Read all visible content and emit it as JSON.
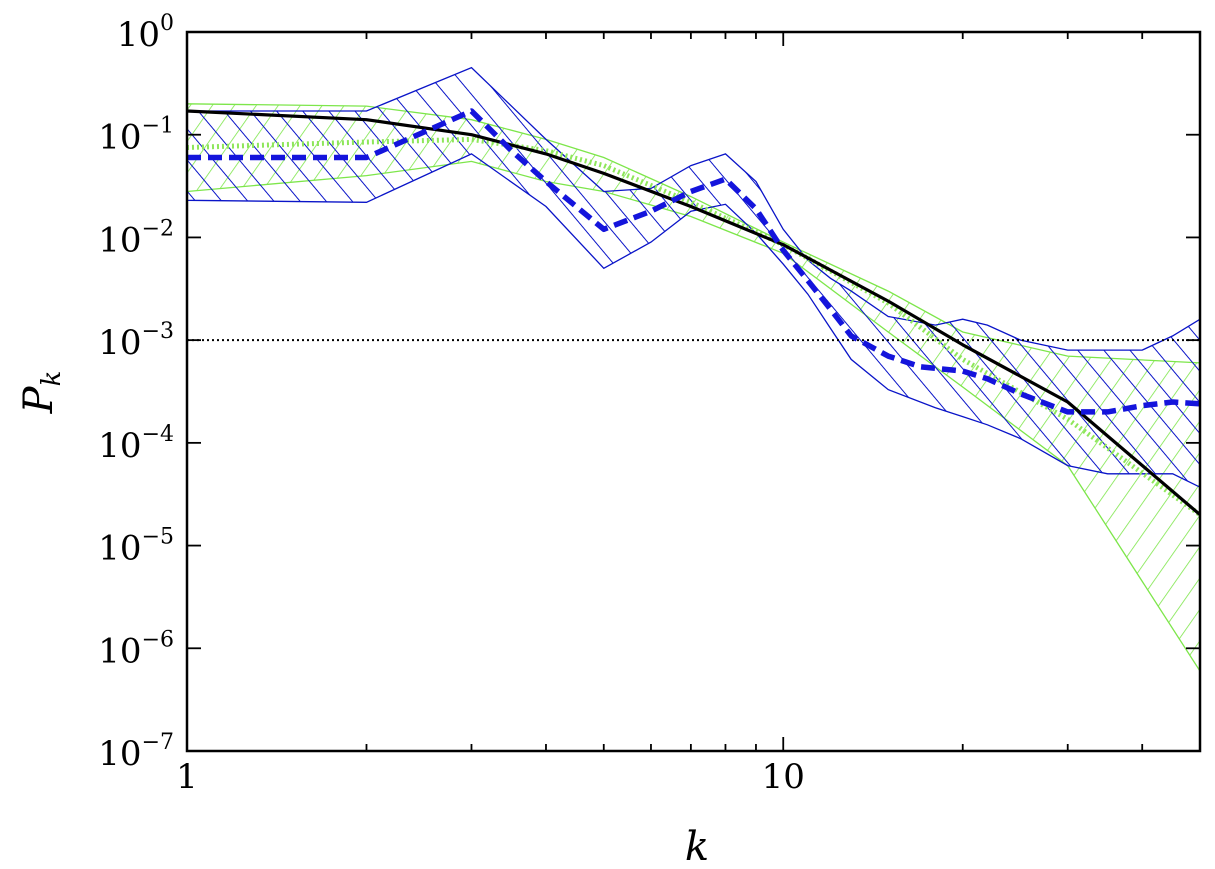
{
  "chart_data": {
    "type": "line",
    "title": "",
    "xlabel": "k",
    "ylabel": "P",
    "ylabel_subscript": "k",
    "x_scale": "log",
    "y_scale": "log",
    "xlim": [
      1,
      50
    ],
    "ylim": [
      1e-07,
      1
    ],
    "x_ticks": [
      {
        "value": 1,
        "label": "1"
      },
      {
        "value": 10,
        "label": "10"
      }
    ],
    "y_ticks": [
      {
        "value": 1,
        "base": "10",
        "exp": "0"
      },
      {
        "value": 0.1,
        "base": "10",
        "exp": "−1"
      },
      {
        "value": 0.01,
        "base": "10",
        "exp": "−2"
      },
      {
        "value": 0.001,
        "base": "10",
        "exp": "−3"
      },
      {
        "value": 0.0001,
        "base": "10",
        "exp": "−4"
      },
      {
        "value": 1e-05,
        "base": "10",
        "exp": "−5"
      },
      {
        "value": 1e-06,
        "base": "10",
        "exp": "−6"
      },
      {
        "value": 1e-07,
        "base": "10",
        "exp": "−7"
      }
    ],
    "grid": false,
    "reference_line": {
      "y": 0.001,
      "style": "dotted",
      "color": "#000000"
    },
    "bands": [
      {
        "color": "#7de64a",
        "hatch": "green-diagonal",
        "x": [
          1,
          2,
          3,
          4,
          5,
          7,
          10,
          15,
          20,
          30,
          50
        ],
        "upper": [
          0.2,
          0.19,
          0.14,
          0.09,
          0.06,
          0.025,
          0.009,
          0.003,
          0.0012,
          0.0007,
          0.0006
        ],
        "lower": [
          0.028,
          0.04,
          0.055,
          0.035,
          0.028,
          0.016,
          0.007,
          0.0012,
          0.00035,
          6e-05,
          6e-07
        ]
      },
      {
        "color": "#0a14c8",
        "hatch": "blue-diagonal",
        "x": [
          1,
          2,
          3,
          4,
          5,
          6,
          7,
          8,
          9,
          10,
          11,
          12,
          13,
          15,
          18,
          20,
          22,
          25,
          30,
          35,
          40,
          45,
          50
        ],
        "upper": [
          0.17,
          0.17,
          0.45,
          0.09,
          0.028,
          0.03,
          0.05,
          0.065,
          0.035,
          0.012,
          0.006,
          0.004,
          0.003,
          0.0017,
          0.0014,
          0.0016,
          0.0014,
          0.001,
          0.0008,
          0.0008,
          0.0008,
          0.0011,
          0.0016
        ],
        "lower": [
          0.023,
          0.022,
          0.065,
          0.02,
          0.005,
          0.009,
          0.018,
          0.021,
          0.011,
          0.0055,
          0.0028,
          0.0013,
          0.00065,
          0.00033,
          0.00022,
          0.00018,
          0.00015,
          0.00011,
          6e-05,
          5e-05,
          5e-05,
          5e-05,
          3.7e-05
        ]
      }
    ],
    "series": [
      {
        "style": "solid",
        "color": "#000000",
        "x": [
          1,
          2,
          3,
          4,
          5,
          7,
          10,
          15,
          20,
          30,
          50
        ],
        "y": [
          0.17,
          0.14,
          0.1,
          0.065,
          0.042,
          0.02,
          0.0085,
          0.0024,
          0.0009,
          0.00025,
          2e-05
        ]
      },
      {
        "style": "dotted",
        "color": "#8ee65a",
        "x": [
          1,
          2,
          3,
          4,
          5,
          7,
          10,
          15,
          20,
          30,
          50
        ],
        "y": [
          0.075,
          0.085,
          0.09,
          0.07,
          0.05,
          0.022,
          0.0085,
          0.0023,
          0.00065,
          0.00017,
          2e-05
        ]
      },
      {
        "style": "dashed",
        "color": "#1414dc",
        "x": [
          1,
          2,
          3,
          3.5,
          4,
          5,
          6,
          7,
          8,
          9,
          10,
          11,
          12,
          13,
          15,
          17,
          20,
          22,
          25,
          30,
          35,
          40,
          45,
          50
        ],
        "y": [
          0.06,
          0.06,
          0.17,
          0.07,
          0.035,
          0.012,
          0.018,
          0.028,
          0.037,
          0.019,
          0.0075,
          0.0038,
          0.002,
          0.0011,
          0.0007,
          0.00055,
          0.0005,
          0.00042,
          0.0003,
          0.0002,
          0.0002,
          0.00023,
          0.00025,
          0.00024
        ]
      }
    ]
  }
}
